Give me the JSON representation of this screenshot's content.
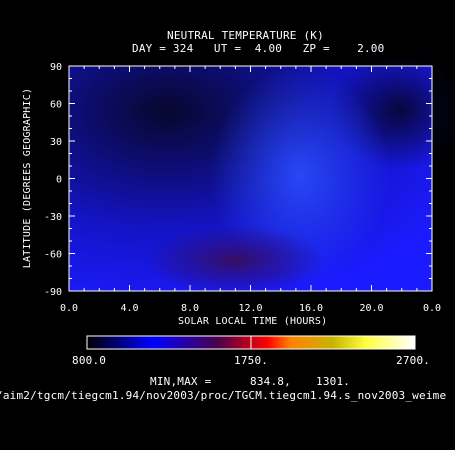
{
  "chart_data": {
    "type": "heatmap",
    "title": "NEUTRAL TEMPERATURE (K)",
    "subtitle": "DAY = 324   UT =  4.00   ZP =    2.00",
    "xlabel": "SOLAR LOCAL TIME (HOURS)",
    "ylabel": "LATITUDE (DEGREES GEOGRAPHIC)",
    "x_ticks": [
      "0.0",
      "4.0",
      "8.0",
      "12.0",
      "16.0",
      "20.0",
      "0.0"
    ],
    "y_ticks": [
      "90",
      "60",
      "30",
      "0",
      "-30",
      "-60",
      "-90"
    ],
    "xlim": [
      0,
      24
    ],
    "ylim": [
      -90,
      90
    ],
    "colorbar": {
      "min_label": "800.0",
      "mid_label": "1750.",
      "max_label": "2700.",
      "range": [
        800,
        2700
      ]
    },
    "min_max_label": "MIN,MAX =",
    "min_value": "834.8,",
    "max_value": "1301.",
    "grid": false,
    "grid_samples": {
      "lat": [
        90,
        60,
        30,
        0,
        -30,
        -60,
        -90
      ],
      "local_time": [
        0,
        4,
        8,
        12,
        16,
        20,
        24
      ],
      "temperature": [
        [
          880,
          860,
          880,
          930,
          960,
          900,
          880
        ],
        [
          870,
          840,
          880,
          960,
          1020,
          930,
          880
        ],
        [
          880,
          860,
          900,
          1000,
          1100,
          960,
          890
        ],
        [
          900,
          880,
          940,
          1060,
          1200,
          1000,
          900
        ],
        [
          920,
          920,
          1050,
          1150,
          1220,
          1000,
          920
        ],
        [
          960,
          1000,
          1220,
          1290,
          1200,
          1050,
          960
        ],
        [
          960,
          1000,
          1200,
          1260,
          1180,
          1040,
          960
        ]
      ]
    }
  },
  "footer": {
    "path_text": "/aim2/tgcm/tiegcm1.94/nov2003/proc/TGCM.tiegcm1.94.s_nov2003_weime"
  }
}
